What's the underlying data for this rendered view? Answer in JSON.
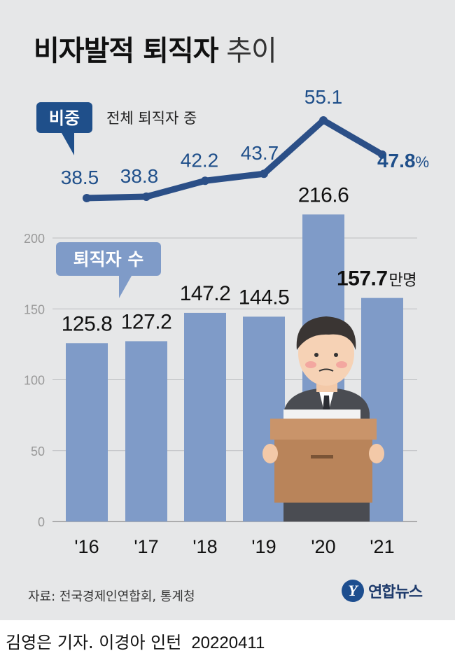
{
  "title": {
    "bold": "비자발적 퇴직자",
    "light": "추이"
  },
  "ratio_label": {
    "badge": "비중",
    "subtitle": "전체 퇴직자 중"
  },
  "count_label": {
    "badge": "퇴직자 수"
  },
  "last_bar_unit": "만명",
  "last_line_unit": "%",
  "source": "자료: 전국경제인연합회, 통계청",
  "logo": {
    "mark": "Y",
    "text": "연합뉴스"
  },
  "credit": {
    "byline": "김영은 기자. 이경아 인턴",
    "date": "20220411"
  },
  "colors": {
    "bar": "#7f9bc8",
    "line": "#2b4f87",
    "line_label": "#1f4f8a",
    "badge": "#1f4f8a",
    "bar_badge": "#7f9bc8"
  },
  "chart_data": [
    {
      "type": "bar",
      "categories": [
        "'16",
        "'17",
        "'18",
        "'19",
        "'20",
        "'21"
      ],
      "values": [
        125.8,
        127.2,
        147.2,
        144.5,
        216.6,
        157.7
      ],
      "value_labels": [
        "125.8",
        "127.2",
        "147.2",
        "144.5",
        "216.6",
        "157.7"
      ],
      "ylim": [
        0,
        200
      ],
      "yticks": [
        0,
        50,
        100,
        150,
        200
      ],
      "unit": "만명",
      "grid": true
    },
    {
      "type": "line",
      "categories": [
        "'16",
        "'17",
        "'18",
        "'19",
        "'20",
        "'21"
      ],
      "values": [
        38.5,
        38.8,
        42.2,
        43.7,
        55.1,
        47.8
      ],
      "value_labels": [
        "38.5",
        "38.8",
        "42.2",
        "43.7",
        "55.1",
        "47.8"
      ],
      "unit": "%"
    }
  ]
}
